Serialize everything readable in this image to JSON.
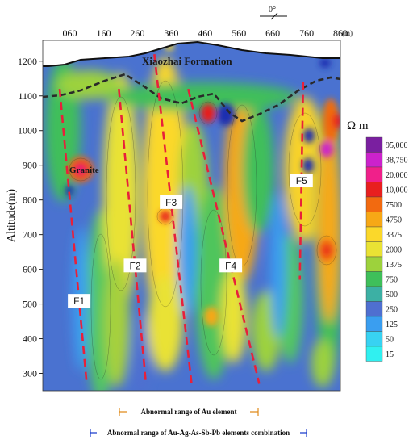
{
  "chart_data": {
    "type": "heatmap",
    "x_ticks": [
      "060",
      "160",
      "260",
      "360",
      "460",
      "560",
      "660",
      "760",
      "860"
    ],
    "x_unit": "(m)",
    "y_ticks": [
      300,
      400,
      500,
      600,
      700,
      800,
      900,
      1000,
      1100,
      1200
    ],
    "ylabel": "Altitude(m)",
    "xlim": [
      0,
      880
    ],
    "ylim": [
      250,
      1260
    ],
    "colorbar": {
      "title": "Ω m",
      "labels": [
        "95,000",
        "38,750",
        "20,000",
        "10,000",
        "7500",
        "4750",
        "3375",
        "2000",
        "1375",
        "750",
        "500",
        "250",
        "125",
        "50",
        "15"
      ],
      "colors": [
        "#7a1fa0",
        "#cc22cc",
        "#f0208a",
        "#e81f1f",
        "#f26a10",
        "#f7a816",
        "#fbd82a",
        "#e9e234",
        "#9dd23c",
        "#3fbf5a",
        "#3cb0a4",
        "#4f6fd0",
        "#3a9ef0",
        "#38d2f2",
        "#30f0f0"
      ]
    },
    "faults": [
      {
        "name": "F1",
        "x": [
          50,
          130
        ],
        "y": [
          1120,
          270
        ]
      },
      {
        "name": "F2",
        "x": [
          225,
          305
        ],
        "y": [
          1120,
          270
        ]
      },
      {
        "name": "F3",
        "x": [
          330,
          440
        ],
        "y": [
          1220,
          270
        ]
      },
      {
        "name": "F4",
        "x": [
          430,
          640
        ],
        "y": [
          1120,
          270
        ]
      },
      {
        "name": "F5",
        "x": [
          770,
          760
        ],
        "y": [
          1140,
          570
        ]
      }
    ],
    "annotations": {
      "formation": "Xiaozhai Formation",
      "granite": "Granite",
      "north": "0°"
    },
    "legend": [
      {
        "text": "Abnormal range of Au element",
        "color": "#e08a1a"
      },
      {
        "text": "Abnormal range of Au-Ag-As-Sb-Pb elements combination",
        "color": "#1a3ccc"
      }
    ]
  }
}
